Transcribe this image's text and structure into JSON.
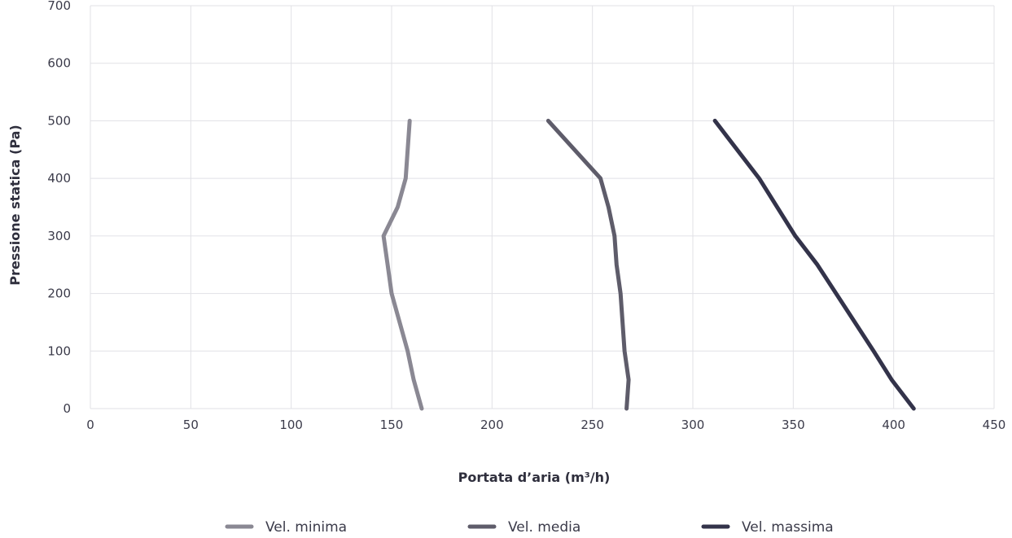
{
  "chart_data": {
    "type": "line",
    "xlabel": "Portata d’aria (m³/h)",
    "ylabel": "Pressione statica (Pa)",
    "xlim": [
      0,
      450
    ],
    "ylim": [
      0,
      700
    ],
    "xticks": [
      0,
      50,
      100,
      150,
      200,
      250,
      300,
      350,
      400,
      450
    ],
    "yticks": [
      0,
      100,
      200,
      300,
      400,
      500,
      600,
      700
    ],
    "grid": true,
    "legend_position": "bottom",
    "series": [
      {
        "name": "Vel. minima",
        "color": "#8a8893",
        "points": [
          [
            165,
            0
          ],
          [
            161,
            50
          ],
          [
            158,
            100
          ],
          [
            150,
            200
          ],
          [
            148,
            250
          ],
          [
            146,
            300
          ],
          [
            153,
            350
          ],
          [
            157,
            400
          ],
          [
            159,
            500
          ]
        ]
      },
      {
        "name": "Vel. media",
        "color": "#5e5c6a",
        "points": [
          [
            267,
            0
          ],
          [
            268,
            50
          ],
          [
            266,
            100
          ],
          [
            264,
            200
          ],
          [
            262,
            250
          ],
          [
            261,
            300
          ],
          [
            258,
            350
          ],
          [
            254,
            400
          ],
          [
            228,
            500
          ]
        ]
      },
      {
        "name": "Vel. massima",
        "color": "#33334a",
        "points": [
          [
            410,
            0
          ],
          [
            399,
            50
          ],
          [
            390,
            100
          ],
          [
            362,
            250
          ],
          [
            351,
            300
          ],
          [
            333,
            400
          ],
          [
            311,
            500
          ]
        ]
      }
    ]
  }
}
